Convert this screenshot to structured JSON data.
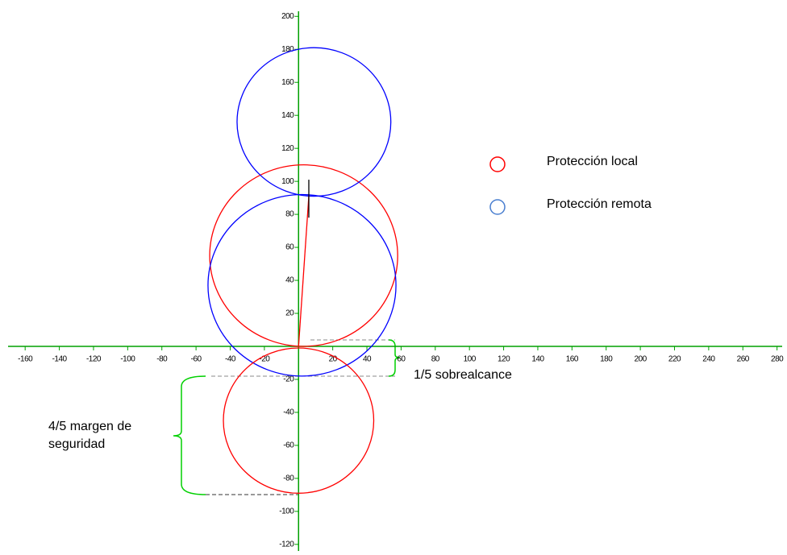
{
  "chart_data": {
    "type": "circle",
    "xlim": [
      -170,
      283
    ],
    "ylim": [
      -124,
      206
    ],
    "xticks": [
      -160,
      -140,
      -120,
      -100,
      -80,
      -60,
      -40,
      -20,
      20,
      40,
      60,
      80,
      100,
      120,
      140,
      160,
      180,
      200,
      220,
      240,
      260,
      280
    ],
    "yticks": [
      -120,
      -100,
      -80,
      -60,
      -40,
      -20,
      20,
      40,
      60,
      80,
      100,
      120,
      140,
      160,
      180,
      200
    ],
    "axis_color": "#00a000",
    "circles": [
      {
        "cx": 3,
        "cy": 55,
        "r": 55,
        "color": "#ff0000"
      },
      {
        "cx": 2,
        "cy": 37,
        "r": 55,
        "color": "#0000ff"
      },
      {
        "cx": 9,
        "cy": 136,
        "r": 45,
        "color": "#0000ff"
      },
      {
        "cx": 0,
        "cy": -45,
        "r": 44,
        "color": "#ff0000"
      }
    ],
    "lines": [
      {
        "x": [
          0,
          6
        ],
        "y": [
          0,
          91
        ],
        "color": "#ff0000"
      },
      {
        "x": [
          6,
          6
        ],
        "y": [
          78,
          101
        ],
        "color": "#000000"
      }
    ],
    "legend": [
      {
        "name": "Protección local",
        "color": "#ff0000"
      },
      {
        "name": "Protección remota",
        "color": "#4a7fd0"
      }
    ],
    "annotations": [
      {
        "lines": [
          "1/5  sobrealcance"
        ]
      },
      {
        "lines": [
          "4/5 margen de",
          "seguridad"
        ]
      }
    ]
  }
}
